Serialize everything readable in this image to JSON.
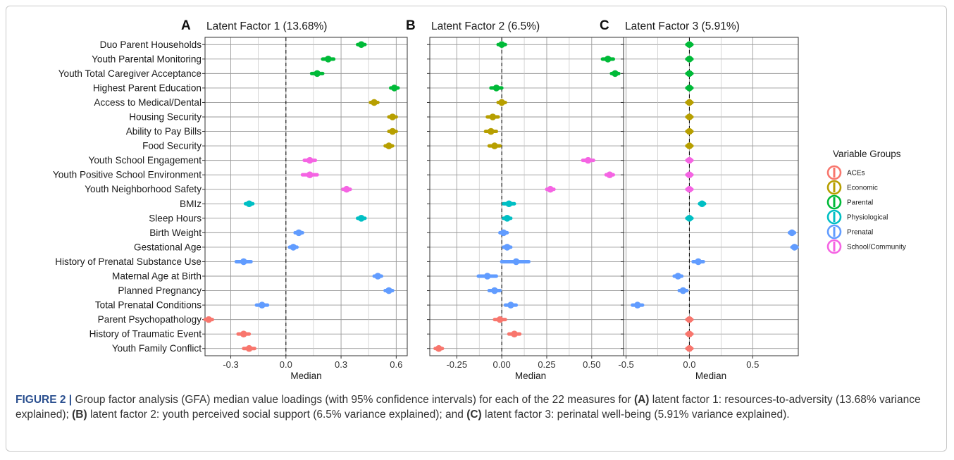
{
  "colors": {
    "ACEs": "#F8766D",
    "Economic": "#B79F00",
    "Parental": "#00BA38",
    "Physiological": "#00BFC4",
    "Prenatal": "#619CFF",
    "School/Community": "#F564E3"
  },
  "chart_data": [
    {
      "type": "scatter",
      "panel": "A",
      "title": "Latent Factor 1 (13.68%)",
      "xlabel": "Median",
      "xlim": [
        -0.44,
        0.66
      ],
      "xticks": [
        -0.3,
        0.0,
        0.3,
        0.6
      ],
      "xtick_labels": [
        "-0.3",
        "0.0",
        "0.3",
        "0.6"
      ],
      "vline": 0,
      "grid": true,
      "variables": [
        "Duo Parent Households",
        "Youth Parental Monitoring",
        "Youth Total Caregiver Acceptance",
        "Highest Parent Education",
        "Access to Medical/Dental",
        "Housing Security",
        "Ability to Pay Bills",
        "Food Security",
        "Youth School Engagement",
        "Youth Positive School Environment",
        "Youth Neighborhood Safety",
        "BMIz",
        "Sleep Hours",
        "Birth Weight",
        "Gestational Age",
        "History of Prenatal Substance Use",
        "Maternal Age at Birth",
        "Planned Pregnancy",
        "Total Prenatal Conditions",
        "Parent Psychopathology",
        "History of Traumatic Event",
        "Youth Family Conflict"
      ],
      "groups": [
        "Parental",
        "Parental",
        "Parental",
        "Parental",
        "Economic",
        "Economic",
        "Economic",
        "Economic",
        "School/Community",
        "School/Community",
        "School/Community",
        "Physiological",
        "Physiological",
        "Prenatal",
        "Prenatal",
        "Prenatal",
        "Prenatal",
        "Prenatal",
        "Prenatal",
        "ACEs",
        "ACEs",
        "ACEs"
      ],
      "median": [
        0.41,
        0.23,
        0.17,
        0.59,
        0.48,
        0.58,
        0.58,
        0.56,
        0.13,
        0.13,
        0.33,
        -0.2,
        0.41,
        0.07,
        0.04,
        -0.23,
        0.5,
        0.56,
        -0.13,
        -0.42,
        -0.23,
        -0.2
      ],
      "ci_low": [
        0.39,
        0.2,
        0.14,
        0.57,
        0.46,
        0.56,
        0.56,
        0.54,
        0.1,
        0.09,
        0.31,
        -0.22,
        0.39,
        0.05,
        0.02,
        -0.27,
        0.48,
        0.54,
        -0.16,
        -0.44,
        -0.26,
        -0.23
      ],
      "ci_high": [
        0.43,
        0.26,
        0.2,
        0.61,
        0.5,
        0.6,
        0.6,
        0.58,
        0.16,
        0.17,
        0.35,
        -0.18,
        0.43,
        0.09,
        0.06,
        -0.19,
        0.52,
        0.58,
        -0.1,
        -0.4,
        -0.2,
        -0.17
      ]
    },
    {
      "type": "scatter",
      "panel": "B",
      "title": "Latent Factor 2 (6.5%)",
      "xlabel": "Median",
      "xlim": [
        -0.4,
        0.72
      ],
      "xticks": [
        -0.25,
        0.0,
        0.25,
        0.5
      ],
      "xtick_labels": [
        "-0.25",
        "0.00",
        "0.25",
        "0.50"
      ],
      "vline": 0,
      "grid": true,
      "median": [
        0.0,
        0.59,
        0.63,
        -0.03,
        0.0,
        -0.05,
        -0.06,
        -0.04,
        0.48,
        0.6,
        0.27,
        0.04,
        0.03,
        0.01,
        0.03,
        0.08,
        -0.08,
        -0.04,
        0.05,
        -0.01,
        0.07,
        -0.35
      ],
      "ci_low": [
        -0.02,
        0.56,
        0.61,
        -0.06,
        -0.02,
        -0.08,
        -0.09,
        -0.07,
        0.45,
        0.58,
        0.25,
        0.01,
        0.01,
        -0.01,
        0.01,
        0.0,
        -0.13,
        -0.07,
        0.02,
        -0.04,
        0.04,
        -0.37
      ],
      "ci_high": [
        0.02,
        0.62,
        0.65,
        0.0,
        0.02,
        -0.02,
        -0.03,
        -0.01,
        0.51,
        0.62,
        0.29,
        0.07,
        0.05,
        0.03,
        0.05,
        0.15,
        -0.03,
        -0.01,
        0.08,
        0.02,
        0.1,
        -0.33
      ]
    },
    {
      "type": "scatter",
      "panel": "C",
      "title": "Latent Factor 3 (5.91%)",
      "xlabel": "Median",
      "xlim": [
        -0.52,
        0.86
      ],
      "xticks": [
        -0.5,
        0.0,
        0.5
      ],
      "xtick_labels": [
        "-0.5",
        "0.0",
        "0.5"
      ],
      "vline": 0,
      "grid": true,
      "median": [
        0.0,
        0.0,
        0.0,
        0.0,
        0.0,
        0.0,
        0.0,
        0.0,
        0.0,
        0.0,
        0.0,
        0.1,
        0.0,
        0.81,
        0.83,
        0.07,
        -0.09,
        -0.05,
        -0.41,
        0.0,
        0.0,
        0.0
      ],
      "ci_low": [
        -0.02,
        -0.02,
        -0.02,
        -0.02,
        -0.02,
        -0.02,
        -0.02,
        -0.02,
        -0.02,
        -0.02,
        -0.02,
        0.08,
        -0.02,
        0.79,
        0.81,
        0.03,
        -0.12,
        -0.08,
        -0.45,
        -0.02,
        -0.02,
        -0.02
      ],
      "ci_high": [
        0.02,
        0.02,
        0.02,
        0.02,
        0.02,
        0.02,
        0.02,
        0.02,
        0.02,
        0.02,
        0.02,
        0.12,
        0.02,
        0.83,
        0.85,
        0.11,
        -0.06,
        -0.02,
        -0.37,
        0.02,
        0.02,
        0.02
      ]
    }
  ],
  "legend": {
    "title": "Variable Groups",
    "items": [
      "ACEs",
      "Economic",
      "Parental",
      "Physiological",
      "Prenatal",
      "School/Community"
    ]
  },
  "caption": {
    "figure_label": "FIGURE 2 |",
    "text_1": "Group factor analysis (GFA) median value loadings (with 95% confidence intervals) for each of the 22 measures for",
    "ref_a": "(A)",
    "text_2": "latent factor 1: resources-to-adversity (13.68% variance explained);",
    "ref_b": "(B)",
    "text_3": "latent factor 2: youth perceived social support (6.5% variance explained); and",
    "ref_c": "(C)",
    "text_4": "latent factor 3: perinatal well-being (5.91% variance explained)."
  }
}
